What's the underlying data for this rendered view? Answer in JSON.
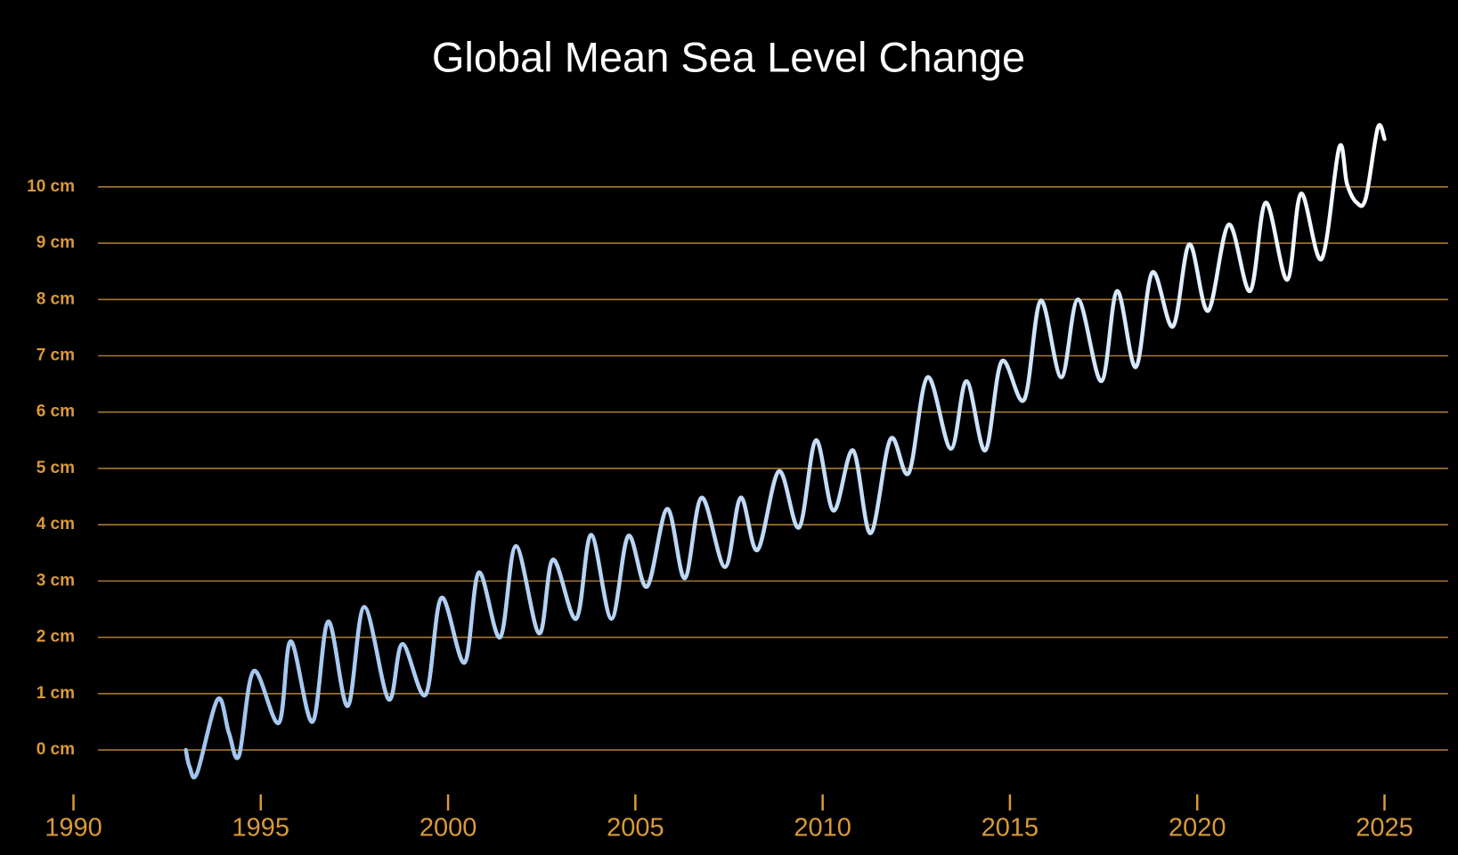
{
  "chart_data": {
    "type": "line",
    "title": "Global Mean Sea Level Change",
    "x": [
      1993.0,
      1993.1,
      1993.3,
      1993.85,
      1994.15,
      1994.42,
      1994.81,
      1995.48,
      1995.8,
      1996.38,
      1996.8,
      1997.32,
      1997.76,
      1998.41,
      1998.78,
      1999.4,
      1999.82,
      2000.44,
      2000.82,
      2001.39,
      2001.81,
      2002.43,
      2002.8,
      2003.42,
      2003.82,
      2004.36,
      2004.81,
      2005.31,
      2005.85,
      2006.32,
      2006.77,
      2007.39,
      2007.81,
      2008.26,
      2008.83,
      2009.37,
      2009.82,
      2010.29,
      2010.81,
      2011.28,
      2011.81,
      2012.3,
      2012.8,
      2013.42,
      2013.84,
      2014.34,
      2014.78,
      2015.38,
      2015.82,
      2016.37,
      2016.82,
      2017.44,
      2017.86,
      2018.36,
      2018.8,
      2019.35,
      2019.79,
      2020.29,
      2020.84,
      2021.41,
      2021.83,
      2022.4,
      2022.77,
      2023.32,
      2023.79,
      2024.0,
      2024.26,
      2024.5,
      2024.82,
      2025.0
    ],
    "values": [
      0,
      -0.3,
      -0.41,
      0.9,
      0.3,
      -0.1,
      1.4,
      0.48,
      1.93,
      0.5,
      2.28,
      0.78,
      2.54,
      0.9,
      1.88,
      0.98,
      2.7,
      1.55,
      3.15,
      2.0,
      3.62,
      2.07,
      3.38,
      2.33,
      3.82,
      2.33,
      3.8,
      2.9,
      4.28,
      3.05,
      4.48,
      3.25,
      4.48,
      3.55,
      4.95,
      3.95,
      5.5,
      4.25,
      5.32,
      3.85,
      5.52,
      4.92,
      6.62,
      5.35,
      6.55,
      5.32,
      6.9,
      6.22,
      7.98,
      6.62,
      8.0,
      6.55,
      8.15,
      6.8,
      8.48,
      7.52,
      8.98,
      7.8,
      9.33,
      8.15,
      9.72,
      8.35,
      9.88,
      8.72,
      10.7,
      10.05,
      9.72,
      9.8,
      11.05,
      10.85
    ],
    "color": "#b3d3f6",
    "xlim": [
      1990,
      2026.7
    ],
    "xticks": [
      1990,
      1995,
      2000,
      2005,
      2010,
      2015,
      2020,
      2025
    ],
    "ylim": [
      -0.8,
      11.2
    ],
    "yticks": [
      {
        "value": 0,
        "label": "0 cm"
      },
      {
        "value": 1,
        "label": "1 cm"
      },
      {
        "value": 2,
        "label": "2 cm"
      },
      {
        "value": 3,
        "label": "3 cm"
      },
      {
        "value": 4,
        "label": "4 cm"
      },
      {
        "value": 5,
        "label": "5 cm"
      },
      {
        "value": 6,
        "label": "6 cm"
      },
      {
        "value": 7,
        "label": "7 cm"
      },
      {
        "value": 8,
        "label": "8 cm"
      },
      {
        "value": 9,
        "label": "9 cm"
      },
      {
        "value": 10,
        "label": "10 cm"
      }
    ],
    "grid": true
  }
}
